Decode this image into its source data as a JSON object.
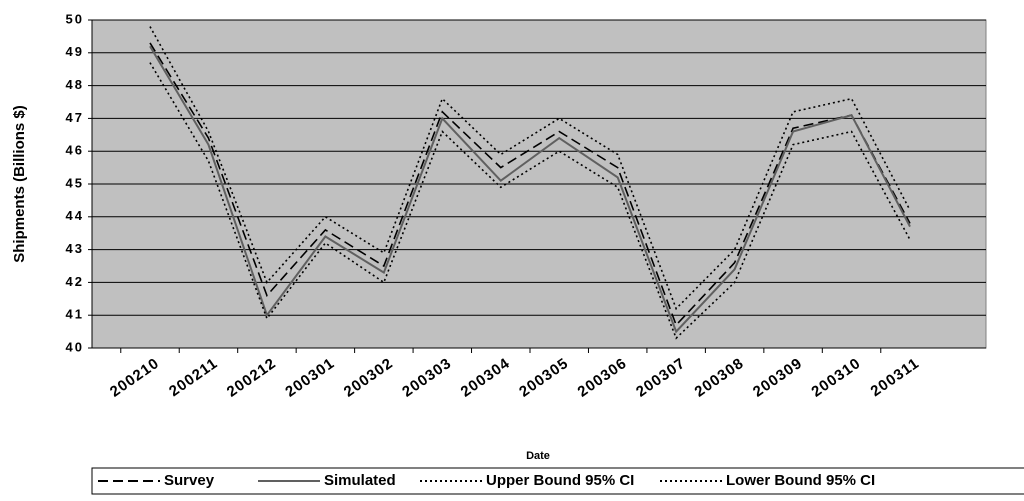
{
  "chart_data": {
    "type": "line",
    "xlabel": "Date",
    "ylabel": "Shipments (Billions $)",
    "categories": [
      "200210",
      "200211",
      "200212",
      "200301",
      "200302",
      "200303",
      "200304",
      "200305",
      "200306",
      "200307",
      "200308",
      "200309",
      "200310",
      "200311"
    ],
    "series": [
      {
        "name": "Survey",
        "color": "#000000",
        "style": "dashed",
        "values": [
          49.3,
          46.4,
          41.6,
          43.6,
          42.5,
          47.2,
          45.5,
          46.6,
          45.5,
          40.7,
          42.6,
          46.7,
          47.1,
          43.8
        ]
      },
      {
        "name": "Simulated",
        "color": "#606060",
        "style": "solid",
        "values": [
          49.2,
          46.2,
          41.0,
          43.4,
          42.3,
          47.0,
          45.1,
          46.4,
          45.2,
          40.5,
          42.4,
          46.6,
          47.1,
          43.7
        ]
      },
      {
        "name": "Upper Bound 95% CI",
        "color": "#000000",
        "style": "dotted",
        "values": [
          49.8,
          46.6,
          42.0,
          44.0,
          42.9,
          47.6,
          45.9,
          47.0,
          45.9,
          41.2,
          43.0,
          47.2,
          47.6,
          44.2
        ]
      },
      {
        "name": "Lower Bound 95% CI",
        "color": "#000000",
        "style": "dotted",
        "values": [
          48.7,
          45.7,
          40.9,
          43.2,
          42.0,
          46.6,
          44.9,
          46.0,
          44.9,
          40.3,
          42.0,
          46.2,
          46.6,
          43.3
        ]
      }
    ],
    "ylim": [
      40,
      50
    ],
    "yticks": [
      40,
      41,
      42,
      43,
      44,
      45,
      46,
      47,
      48,
      49,
      50
    ],
    "grid": true,
    "plot_background": "#c0c0c0",
    "legend": "bottom"
  }
}
